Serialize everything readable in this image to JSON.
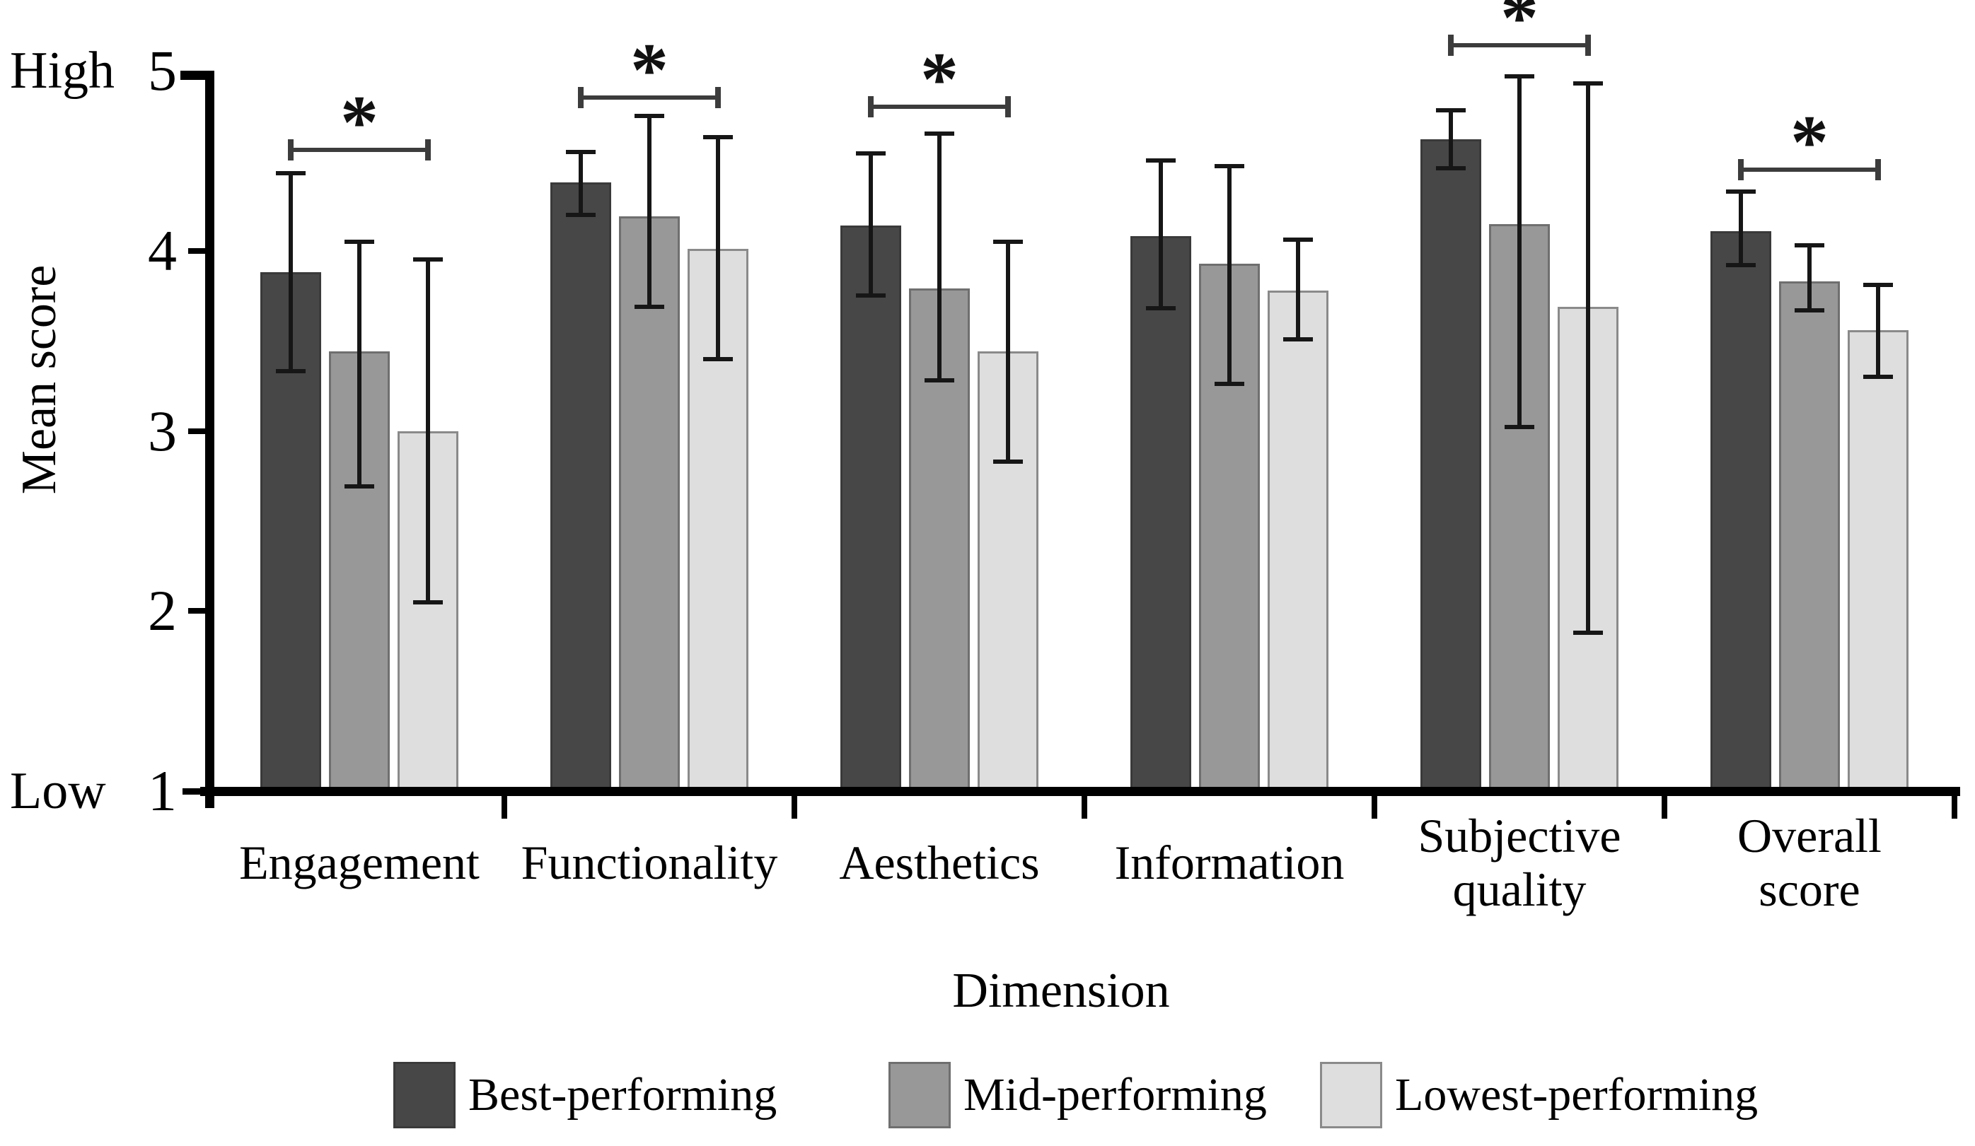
{
  "chart_data": {
    "type": "bar",
    "title": "",
    "xlabel": "Dimension",
    "ylabel": "Mean score",
    "ylim": [
      1,
      5
    ],
    "yticks": [
      5,
      4,
      3,
      2,
      1
    ],
    "ytick_high_label": "High",
    "ytick_low_label": "Low",
    "grid": false,
    "legend_position": "bottom",
    "categories": [
      "Engagement",
      "Functionality",
      "Aesthetics",
      "Information",
      "Subjective\nquality",
      "Overall\nscore"
    ],
    "series": [
      {
        "name": "Best-performing",
        "fill": "#474747",
        "border": "#3a3a3a",
        "means": [
          3.88,
          4.38,
          4.14,
          4.08,
          4.62,
          4.11
        ],
        "err_upper": [
          4.43,
          4.55,
          4.54,
          4.5,
          4.78,
          4.33
        ],
        "err_lower": [
          3.33,
          4.2,
          3.75,
          3.68,
          4.46,
          3.92
        ]
      },
      {
        "name": "Mid-performing",
        "fill": "#989898",
        "border": "#6f6f6f",
        "means": [
          3.44,
          4.19,
          3.79,
          3.93,
          4.15,
          3.83
        ],
        "err_upper": [
          4.05,
          4.75,
          4.65,
          4.47,
          4.97,
          4.03
        ],
        "err_lower": [
          2.69,
          3.69,
          3.28,
          3.26,
          3.02,
          3.67
        ]
      },
      {
        "name": "Lowest-performing",
        "fill": "#dedede",
        "border": "#8a8a8a",
        "means": [
          3.0,
          4.01,
          3.44,
          3.78,
          3.69,
          3.56
        ],
        "err_upper": [
          3.95,
          4.63,
          4.05,
          4.06,
          4.93,
          3.81
        ],
        "err_lower": [
          2.05,
          3.4,
          2.83,
          3.51,
          1.88,
          3.3
        ]
      }
    ],
    "significance_brackets": [
      {
        "category_index": 0,
        "label": "*",
        "y_value": 4.56
      },
      {
        "category_index": 1,
        "label": "*",
        "y_value": 4.85
      },
      {
        "category_index": 2,
        "label": "*",
        "y_value": 4.8
      },
      {
        "category_index": 4,
        "label": "*",
        "y_value": 5.14
      },
      {
        "category_index": 5,
        "label": "*",
        "y_value": 4.45
      }
    ]
  }
}
